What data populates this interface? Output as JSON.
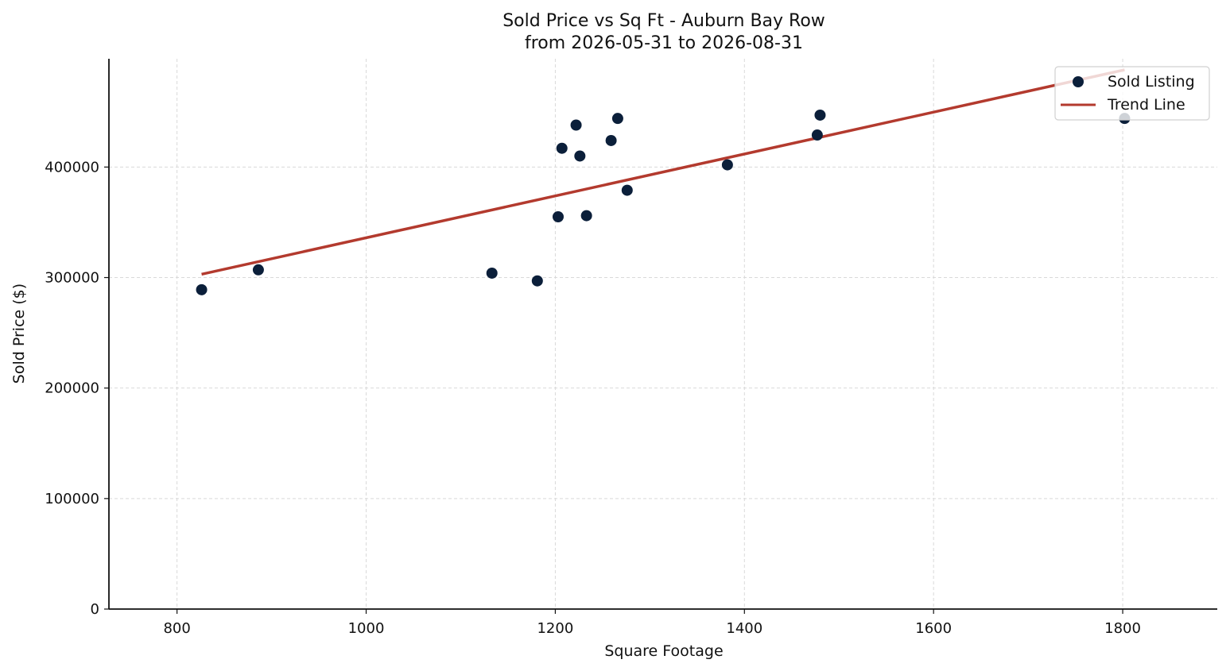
{
  "chart_data": {
    "type": "scatter",
    "title": "Sold Price vs Sq Ft - Auburn Bay Row",
    "subtitle": "from 2026-05-31 to 2026-08-31",
    "xlabel": "Square Footage",
    "ylabel": "Sold Price ($)",
    "xlim": [
      728,
      1900
    ],
    "ylim": [
      0,
      498000
    ],
    "x_ticks": [
      800,
      1000,
      1200,
      1400,
      1600,
      1800
    ],
    "y_ticks": [
      0,
      100000,
      200000,
      300000,
      400000
    ],
    "x_tick_labels": [
      "800",
      "1000",
      "1200",
      "1400",
      "1600",
      "1800"
    ],
    "y_tick_labels": [
      "0",
      "100000",
      "200000",
      "300000",
      "400000"
    ],
    "grid": true,
    "legend_position": "top-right",
    "series": [
      {
        "name": "Sold Listing",
        "kind": "scatter",
        "color": "#0b1f3a",
        "points": [
          {
            "x": 826,
            "y": 289000
          },
          {
            "x": 886,
            "y": 307000
          },
          {
            "x": 1133,
            "y": 304000
          },
          {
            "x": 1181,
            "y": 297000
          },
          {
            "x": 1203,
            "y": 355000
          },
          {
            "x": 1207,
            "y": 417000
          },
          {
            "x": 1222,
            "y": 438000
          },
          {
            "x": 1226,
            "y": 410000
          },
          {
            "x": 1233,
            "y": 356000
          },
          {
            "x": 1259,
            "y": 424000
          },
          {
            "x": 1266,
            "y": 444000
          },
          {
            "x": 1276,
            "y": 379000
          },
          {
            "x": 1382,
            "y": 402000
          },
          {
            "x": 1477,
            "y": 429000
          },
          {
            "x": 1480,
            "y": 447000
          },
          {
            "x": 1802,
            "y": 444000
          }
        ]
      },
      {
        "name": "Trend Line",
        "kind": "line",
        "color": "#b33a2e",
        "points": [
          {
            "x": 826,
            "y": 303000
          },
          {
            "x": 1802,
            "y": 488000
          }
        ]
      }
    ]
  }
}
